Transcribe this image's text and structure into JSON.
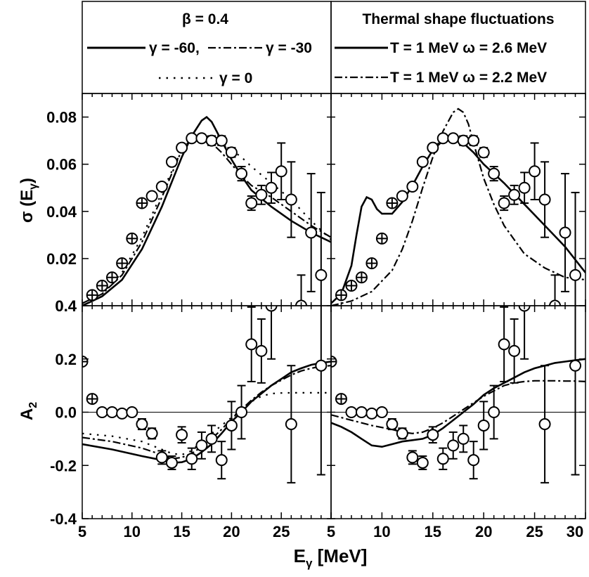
{
  "chart_data": {
    "type": "line",
    "x_range": [
      5,
      30
    ],
    "x_ticks": [
      5,
      10,
      15,
      20,
      25,
      30
    ],
    "x_tick_labels_left": [
      "5",
      "10",
      "15",
      "20",
      "25",
      "5"
    ],
    "x_tick_labels_right": [
      "",
      "10",
      "15",
      "20",
      "25",
      "30"
    ],
    "xlabel": "E",
    "xlabel_sub": "γ",
    "xlabel_unit": " [MeV]",
    "upper_panel": {
      "ylabel": "σ (E",
      "ylabel_sub": "γ",
      "ylabel_close": ")",
      "ylim": [
        0.0,
        0.09
      ],
      "y_ticks": [
        0.02,
        0.04,
        0.06,
        0.08
      ],
      "y_tick_labels": [
        "0.02",
        "0.04",
        "0.06",
        "0.08"
      ]
    },
    "lower_panel": {
      "ylabel": "A",
      "ylabel_sub": "2",
      "ylim": [
        -0.4,
        0.4
      ],
      "y_ticks": [
        -0.4,
        -0.2,
        0.0,
        0.2,
        0.4
      ],
      "y_tick_labels": [
        "-0.4",
        "-0.2",
        "0.0",
        "0.2",
        "0.4"
      ]
    },
    "legend_left": {
      "title": "β = 0.4",
      "line1_a": "γ = -60,",
      "line1_b": "γ = -30",
      "line2": "γ = 0"
    },
    "legend_right": {
      "title": "Thermal shape fluctuations",
      "entry1": "T = 1 MeV ω = 2.6 MeV",
      "entry2": "T = 1 MeV ω = 2.2 MeV"
    },
    "data_upper": {
      "x": [
        6,
        7,
        8,
        9,
        10,
        11,
        12,
        13,
        14,
        15,
        16,
        17,
        18,
        19,
        20,
        21,
        22,
        23,
        24,
        25,
        26,
        27,
        28,
        29
      ],
      "y": [
        0.0045,
        0.0085,
        0.012,
        0.018,
        0.0285,
        0.0435,
        0.0465,
        0.0505,
        0.061,
        0.067,
        0.071,
        0.071,
        0.07,
        0.07,
        0.065,
        0.056,
        0.0435,
        0.047,
        0.05,
        0.057,
        0.045,
        0.0,
        0.031,
        0.013
      ],
      "err": [
        0.0005,
        0.0005,
        0.0005,
        0.0007,
        0.0008,
        0.001,
        0.001,
        0.0012,
        0.0015,
        0.0015,
        0.0015,
        0.0015,
        0.002,
        0.002,
        0.002,
        0.003,
        0.003,
        0.004,
        0.0065,
        0.012,
        0.016,
        0.013,
        0.025,
        0.035
      ],
      "crossed_until_x": 11
    },
    "data_lower": {
      "x": [
        5,
        6,
        7,
        8,
        9,
        10,
        11,
        12,
        13,
        14,
        15,
        16,
        17,
        18,
        19,
        20,
        21,
        22,
        23,
        24,
        26,
        29
      ],
      "y": [
        0.19,
        0.05,
        0.0,
        0.0,
        -0.005,
        0.0,
        -0.045,
        -0.08,
        -0.17,
        -0.19,
        -0.085,
        -0.175,
        -0.125,
        -0.1,
        -0.18,
        -0.05,
        0.0,
        0.255,
        0.23,
        0.4,
        -0.045,
        0.175
      ],
      "err": [
        0.01,
        0.01,
        0.01,
        0.01,
        0.01,
        0.01,
        0.02,
        0.02,
        0.025,
        0.025,
        0.03,
        0.04,
        0.05,
        0.05,
        0.07,
        0.09,
        0.1,
        0.14,
        0.12,
        0.2,
        0.22,
        0.41
      ],
      "crossed_until_x": 6
    },
    "curves_upper_left": [
      {
        "style": "solid",
        "x": [
          5,
          7,
          9,
          11,
          13,
          15,
          16,
          17,
          17.5,
          18,
          19,
          20,
          21,
          22,
          24,
          26,
          28,
          30
        ],
        "y": [
          0.0,
          0.004,
          0.011,
          0.024,
          0.042,
          0.063,
          0.072,
          0.0785,
          0.08,
          0.078,
          0.07,
          0.062,
          0.055,
          0.049,
          0.042,
          0.036,
          0.031,
          0.027
        ]
      },
      {
        "style": "dashdot",
        "x": [
          5,
          7,
          9,
          11,
          13,
          15,
          16,
          17,
          18,
          19,
          20,
          21,
          22,
          24,
          26,
          28,
          30
        ],
        "y": [
          0.001,
          0.005,
          0.013,
          0.027,
          0.046,
          0.066,
          0.071,
          0.072,
          0.069,
          0.065,
          0.06,
          0.055,
          0.051,
          0.046,
          0.04,
          0.034,
          0.029
        ]
      },
      {
        "style": "dotted",
        "x": [
          5,
          7,
          9,
          11,
          13,
          15,
          16,
          17,
          18,
          19,
          20,
          21,
          22,
          24,
          26,
          28,
          30
        ],
        "y": [
          0.001,
          0.005,
          0.014,
          0.029,
          0.048,
          0.066,
          0.07,
          0.071,
          0.07,
          0.068,
          0.066,
          0.063,
          0.059,
          0.052,
          0.045,
          0.036,
          0.028
        ]
      }
    ],
    "curves_upper_right": [
      {
        "style": "solid",
        "x": [
          5,
          6,
          7,
          7.5,
          8,
          8.5,
          9,
          9.5,
          10,
          11,
          12,
          13,
          14,
          15,
          16,
          17,
          18,
          19,
          20,
          22,
          24,
          26,
          28,
          30
        ],
        "y": [
          0.001,
          0.005,
          0.017,
          0.03,
          0.042,
          0.046,
          0.045,
          0.041,
          0.039,
          0.039,
          0.044,
          0.051,
          0.059,
          0.066,
          0.07,
          0.071,
          0.069,
          0.065,
          0.06,
          0.052,
          0.043,
          0.034,
          0.025,
          0.014
        ]
      },
      {
        "style": "dashdot",
        "x": [
          5,
          7,
          9,
          11,
          12,
          13,
          14,
          15,
          16,
          17,
          17.5,
          18,
          18.5,
          19,
          20,
          21,
          22,
          24,
          26,
          28,
          30
        ],
        "y": [
          0.0,
          0.002,
          0.006,
          0.015,
          0.024,
          0.036,
          0.05,
          0.063,
          0.074,
          0.082,
          0.0835,
          0.082,
          0.077,
          0.069,
          0.054,
          0.043,
          0.034,
          0.022,
          0.016,
          0.012,
          0.011
        ]
      }
    ],
    "curves_lower_left": [
      {
        "style": "solid",
        "x": [
          5,
          8,
          11,
          13,
          14,
          15,
          16,
          17,
          18,
          19,
          20,
          21,
          22,
          23,
          24,
          25,
          26,
          27,
          28,
          29,
          30
        ],
        "y": [
          -0.12,
          -0.14,
          -0.165,
          -0.18,
          -0.19,
          -0.188,
          -0.175,
          -0.15,
          -0.12,
          -0.08,
          -0.035,
          0.0,
          0.04,
          0.07,
          0.1,
          0.125,
          0.15,
          0.165,
          0.178,
          0.185,
          0.19
        ]
      },
      {
        "style": "dashdot",
        "x": [
          5,
          8,
          11,
          13,
          14,
          15,
          16,
          17,
          18,
          19,
          20,
          21,
          22,
          23,
          24,
          25,
          26,
          27,
          28,
          29,
          30
        ],
        "y": [
          -0.095,
          -0.11,
          -0.135,
          -0.16,
          -0.175,
          -0.17,
          -0.155,
          -0.13,
          -0.1,
          -0.065,
          -0.025,
          0.01,
          0.045,
          0.075,
          0.1,
          0.12,
          0.14,
          0.155,
          0.165,
          0.172,
          0.175
        ]
      },
      {
        "style": "dotted",
        "x": [
          5,
          8,
          11,
          13,
          14,
          15,
          16,
          17,
          18,
          19,
          20,
          21,
          22,
          23,
          24,
          25,
          26,
          27,
          28,
          29,
          30
        ],
        "y": [
          -0.08,
          -0.09,
          -0.11,
          -0.14,
          -0.155,
          -0.16,
          -0.145,
          -0.11,
          -0.08,
          -0.05,
          -0.02,
          0.01,
          0.04,
          0.06,
          0.07,
          0.072,
          0.073,
          0.073,
          0.073,
          0.073,
          0.073
        ]
      }
    ],
    "curves_lower_right": [
      {
        "style": "solid",
        "x": [
          5,
          6,
          7,
          8,
          9,
          10,
          11,
          12,
          13,
          14,
          15,
          16,
          17,
          18,
          19,
          20,
          21,
          22,
          23,
          24,
          25,
          26,
          27,
          28,
          29,
          30
        ],
        "y": [
          -0.04,
          -0.055,
          -0.075,
          -0.1,
          -0.125,
          -0.13,
          -0.12,
          -0.11,
          -0.105,
          -0.1,
          -0.085,
          -0.06,
          -0.03,
          0.0,
          0.03,
          0.065,
          0.09,
          0.11,
          0.13,
          0.15,
          0.165,
          0.175,
          0.185,
          0.19,
          0.195,
          0.2
        ]
      },
      {
        "style": "dashdot",
        "x": [
          5,
          7,
          9,
          11,
          12,
          13,
          14,
          15,
          16,
          17,
          18,
          19,
          20,
          21,
          22,
          23,
          24,
          25,
          26,
          27,
          28,
          29,
          30
        ],
        "y": [
          -0.01,
          -0.03,
          -0.05,
          -0.065,
          -0.075,
          -0.08,
          -0.075,
          -0.06,
          -0.04,
          -0.015,
          0.01,
          0.035,
          0.06,
          0.08,
          0.1,
          0.11,
          0.115,
          0.118,
          0.118,
          0.118,
          0.117,
          0.117,
          0.115
        ]
      }
    ]
  }
}
